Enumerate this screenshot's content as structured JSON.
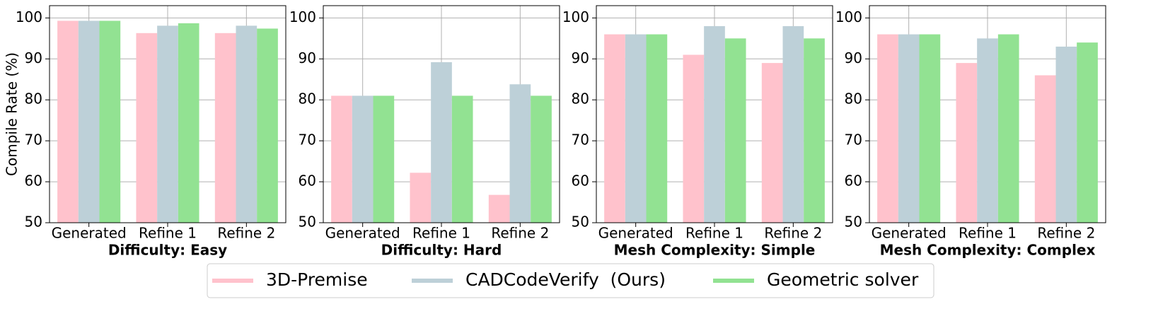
{
  "chart_data": [
    {
      "type": "bar",
      "xlabel": "Difficulty: Easy",
      "ylabel": "Compile Rate (%)",
      "categories": [
        "Generated",
        "Refine 1",
        "Refine 2"
      ],
      "series": [
        {
          "name": "3D-Premise",
          "color": "#ffc2cc",
          "values": [
            99.3,
            96.3,
            96.3
          ]
        },
        {
          "name": "CADCodeVerify  (Ours)",
          "color": "#bdd0d8",
          "values": [
            99.3,
            98.1,
            98.1
          ]
        },
        {
          "name": "Geometric solver",
          "color": "#92e292",
          "values": [
            99.3,
            98.7,
            97.4
          ]
        }
      ],
      "ylim": [
        50,
        103
      ],
      "yticks": [
        50,
        60,
        70,
        80,
        90,
        100
      ],
      "grid": true
    },
    {
      "type": "bar",
      "xlabel": "Difficulty: Hard",
      "categories": [
        "Generated",
        "Refine 1",
        "Refine 2"
      ],
      "series": [
        {
          "color": "#ffc2cc",
          "values": [
            81,
            62.2,
            56.8
          ]
        },
        {
          "color": "#bdd0d8",
          "values": [
            81,
            89.2,
            83.8
          ]
        },
        {
          "color": "#92e292",
          "values": [
            81,
            81,
            81
          ]
        }
      ],
      "ylim": [
        50,
        103
      ],
      "yticks": [
        50,
        60,
        70,
        80,
        90,
        100
      ],
      "grid": true
    },
    {
      "type": "bar",
      "xlabel": "Mesh Complexity: Simple",
      "categories": [
        "Generated",
        "Refine 1",
        "Refine 2"
      ],
      "series": [
        {
          "color": "#ffc2cc",
          "values": [
            96,
            91,
            89
          ]
        },
        {
          "color": "#bdd0d8",
          "values": [
            96,
            98,
            98
          ]
        },
        {
          "color": "#92e292",
          "values": [
            96,
            95,
            95
          ]
        }
      ],
      "ylim": [
        50,
        103
      ],
      "yticks": [
        50,
        60,
        70,
        80,
        90,
        100
      ],
      "grid": true
    },
    {
      "type": "bar",
      "xlabel": "Mesh Complexity: Complex",
      "categories": [
        "Generated",
        "Refine 1",
        "Refine 2"
      ],
      "series": [
        {
          "color": "#ffc2cc",
          "values": [
            96,
            89,
            86
          ]
        },
        {
          "color": "#bdd0d8",
          "values": [
            96,
            95,
            93
          ]
        },
        {
          "color": "#92e292",
          "values": [
            96,
            96,
            94
          ]
        }
      ],
      "ylim": [
        50,
        103
      ],
      "yticks": [
        50,
        60,
        70,
        80,
        90,
        100
      ],
      "grid": true
    }
  ]
}
